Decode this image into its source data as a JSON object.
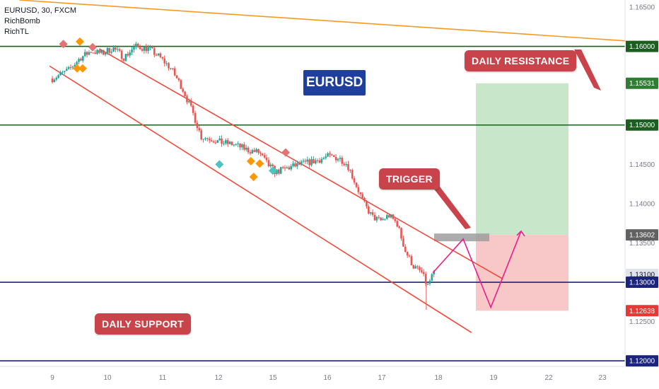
{
  "legend": {
    "symbol_line": "EURUSD, 30, FXCM",
    "indicator1": "RichBomb",
    "indicator2": "RichTL"
  },
  "annotations": {
    "symbol_badge": "EURUSD",
    "trigger": "TRIGGER",
    "daily_resistance": "DAILY RESISTANCE",
    "daily_support": "DAILY SUPPORT"
  },
  "colors": {
    "bull": "#26a69a",
    "bear": "#ef5350",
    "channel": "#ef4b3c",
    "orange_line": "#f79a22",
    "green_level": "#1b5e20",
    "blue_level": "#1a237e",
    "profit_zone": "#c8e6c9",
    "loss_zone": "#f8c8c8",
    "projection": "#e91e8c",
    "callout": "#c9434a",
    "badge": "#1e3f9e"
  },
  "chart_data": {
    "type": "candlestick",
    "symbol": "EURUSD",
    "timeframe": "30",
    "source": "FXCM",
    "ylim": [
      1.1193,
      1.1659
    ],
    "y_ticks": [
      "1.16500",
      "1.16000",
      "1.15500",
      "1.15000",
      "1.14500",
      "1.14000",
      "1.13500",
      "1.13000",
      "1.12500",
      "1.12000"
    ],
    "x_ticks": [
      "9",
      "10",
      "11",
      "12",
      "15",
      "16",
      "17",
      "18",
      "19",
      "22",
      "23"
    ],
    "price_labels": [
      {
        "label": "1.16000",
        "value": 1.16,
        "kind": "green"
      },
      {
        "label": "1.15531",
        "value": 1.15531,
        "kind": "profit"
      },
      {
        "label": "1.15000",
        "value": 1.15,
        "kind": "green"
      },
      {
        "label": "1.13602",
        "value": 1.13602,
        "kind": "grey"
      },
      {
        "label": "1.13100",
        "value": 1.131,
        "kind": "plain"
      },
      {
        "label": "1.13000",
        "value": 1.13,
        "kind": "blue"
      },
      {
        "label": "1.12638",
        "value": 1.12638,
        "kind": "loss"
      },
      {
        "label": "1.12000",
        "value": 1.12,
        "kind": "blue"
      }
    ],
    "horizontal_levels": [
      {
        "value": 1.16,
        "color": "green"
      },
      {
        "value": 1.15,
        "color": "green"
      },
      {
        "value": 1.13,
        "color": "blue"
      },
      {
        "value": 1.12,
        "color": "blue"
      }
    ],
    "trendlines": [
      {
        "name": "orange",
        "from": [
          -0.6,
          1.1659
        ],
        "to": [
          10.4,
          1.1607
        ]
      },
      {
        "name": "channel_upper",
        "from": [
          0.85,
          1.1597
        ],
        "to": [
          8.15,
          1.1305
        ]
      },
      {
        "name": "channel_lower",
        "from": [
          -0.05,
          1.1575
        ],
        "to": [
          7.6,
          1.1236
        ]
      }
    ],
    "position": {
      "entry": 1.13602,
      "take_profit": 1.15531,
      "stop_loss": 1.12638
    },
    "projection_path": [
      [
        6.9,
        1.1312
      ],
      [
        7.45,
        1.1355
      ],
      [
        7.95,
        1.1268
      ],
      [
        8.5,
        1.1365
      ]
    ],
    "price_path": [
      [
        0,
        1.1559
      ],
      [
        0.3,
        1.157
      ],
      [
        0.5,
        1.1585
      ],
      [
        0.7,
        1.1594
      ],
      [
        0.9,
        1.1591
      ],
      [
        1.1,
        1.1598
      ],
      [
        1.3,
        1.1586
      ],
      [
        1.5,
        1.16
      ],
      [
        1.75,
        1.1597
      ],
      [
        1.95,
        1.1586
      ],
      [
        2.15,
        1.1572
      ],
      [
        2.35,
        1.1548
      ],
      [
        2.55,
        1.1515
      ],
      [
        2.7,
        1.1485
      ],
      [
        2.85,
        1.1483
      ],
      [
        3.05,
        1.1478
      ],
      [
        3.3,
        1.1475
      ],
      [
        3.55,
        1.1468
      ],
      [
        3.75,
        1.1465
      ],
      [
        3.9,
        1.145
      ],
      [
        4.05,
        1.144
      ],
      [
        4.25,
        1.1445
      ],
      [
        4.5,
        1.145
      ],
      [
        4.8,
        1.1455
      ],
      [
        5.0,
        1.146
      ],
      [
        5.2,
        1.1458
      ],
      [
        5.35,
        1.145
      ],
      [
        5.5,
        1.1425
      ],
      [
        5.65,
        1.14
      ],
      [
        5.8,
        1.1383
      ],
      [
        5.95,
        1.1378
      ],
      [
        6.1,
        1.1385
      ],
      [
        6.25,
        1.1375
      ],
      [
        6.4,
        1.134
      ],
      [
        6.55,
        1.132
      ],
      [
        6.7,
        1.1312
      ],
      [
        6.8,
        1.1295
      ],
      [
        6.9,
        1.131
      ]
    ]
  }
}
